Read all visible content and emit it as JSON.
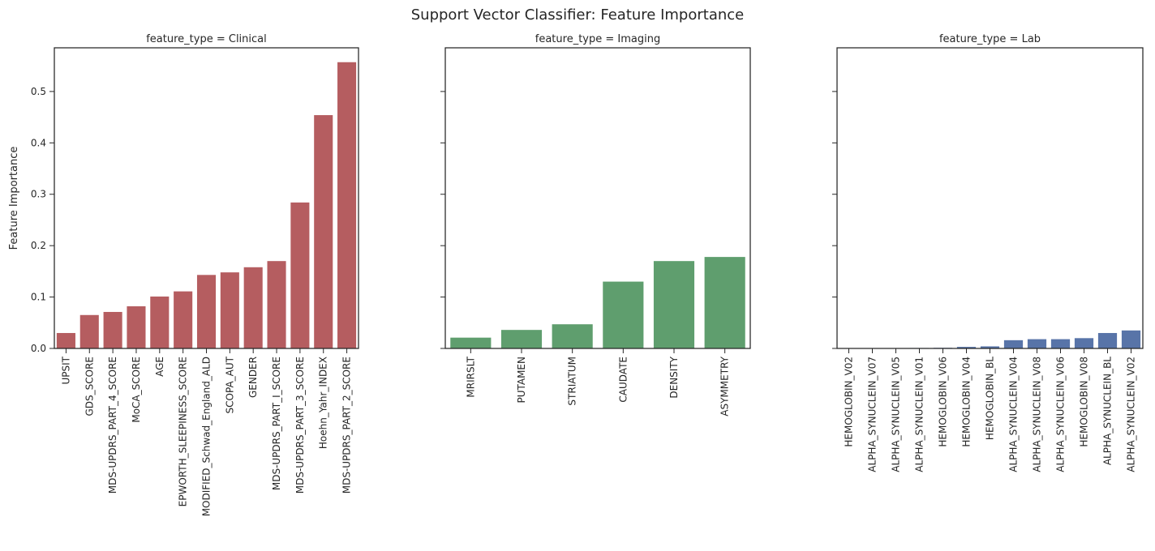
{
  "figure_title": "Support Vector Classifier: Feature Importance",
  "chart_data": [
    {
      "type": "bar",
      "title": "feature_type = Clinical",
      "ylabel": "Feature Importance",
      "xlabel": "",
      "ylim": [
        0,
        0.585
      ],
      "yticks": [
        "0.0",
        "0.1",
        "0.2",
        "0.3",
        "0.4",
        "0.5"
      ],
      "color": "#b55d60",
      "categories": [
        "UPSIT",
        "GDS_SCORE",
        "MDS-UPDRS_PART_4_SCORE",
        "MoCA_SCORE",
        "AGE",
        "EPWORTH_SLEEPINESS_SCORE",
        "MODIFIED_Schwad_England_ALD",
        "SCOPA_AUT",
        "GENDER",
        "MDS-UPDRS_PART_I_SCORE",
        "MDS-UPDRS_PART_3_SCORE",
        "Hoehn_Yahr_INDEX",
        "MDS-UPDRS_PART_2_SCORE"
      ],
      "values": [
        0.03,
        0.065,
        0.071,
        0.082,
        0.101,
        0.111,
        0.143,
        0.148,
        0.158,
        0.17,
        0.284,
        0.454,
        0.557
      ]
    },
    {
      "type": "bar",
      "title": "feature_type = Imaging",
      "ylabel": "",
      "xlabel": "",
      "ylim": [
        0,
        0.585
      ],
      "color": "#5f9e6e",
      "categories": [
        "MRIRSLT",
        "PUTAMEN",
        "STRIATUM",
        "CAUDATE",
        "DENSITY",
        "ASYMMETRY"
      ],
      "values": [
        0.021,
        0.036,
        0.047,
        0.13,
        0.17,
        0.178
      ]
    },
    {
      "type": "bar",
      "title": "feature_type = Lab",
      "ylabel": "",
      "xlabel": "",
      "ylim": [
        0,
        0.585
      ],
      "color": "#5874a8",
      "categories": [
        "HEMOGLOBIN_V02",
        "ALPHA_SYNUCLEIN_V07",
        "ALPHA_SYNUCLEIN_V05",
        "ALPHA_SYNUCLEIN_V01",
        "HEMOGLOBIN_V06",
        "HEMOGLOBIN_V04",
        "HEMOGLOBIN_BL",
        "ALPHA_SYNUCLEIN_V04",
        "ALPHA_SYNUCLEIN_V08",
        "ALPHA_SYNUCLEIN_V06",
        "HEMOGLOBIN_V08",
        "ALPHA_SYNUCLEIN_BL",
        "ALPHA_SYNUCLEIN_V02"
      ],
      "values": [
        0.0003,
        0.0005,
        0.0007,
        0.0009,
        0.0012,
        0.003,
        0.004,
        0.016,
        0.018,
        0.018,
        0.02,
        0.03,
        0.035
      ]
    }
  ]
}
